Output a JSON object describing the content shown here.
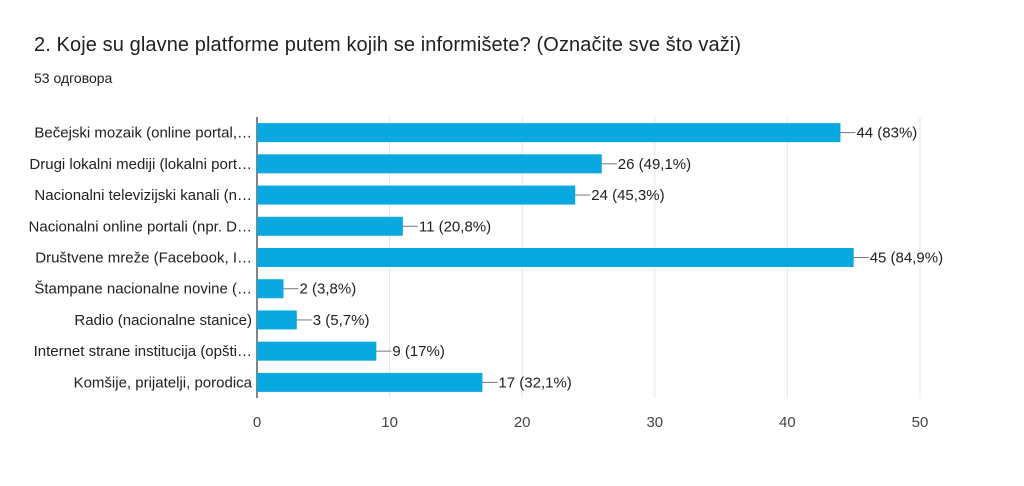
{
  "header": {
    "title": "2. Koje su glavne platforme putem kojih se informišete? (Označite sve što važi)",
    "response_count": "53 одговора"
  },
  "chart_data": {
    "type": "bar",
    "orientation": "horizontal",
    "title": "",
    "xlabel": "",
    "ylabel": "",
    "xlim": [
      0,
      50
    ],
    "x_ticks": [
      0,
      10,
      20,
      30,
      40,
      50
    ],
    "grid": true,
    "bar_color": "#0aa8e0",
    "categories": [
      "Bečejski mozaik (online portal,…",
      "Drugi lokalni mediji (lokalni port…",
      "Nacionalni televizijski kanali (n…",
      "Nacionalni online portali (npr. D…",
      "Društvene mreže (Facebook, I…",
      "Štampane nacionalne novine (…",
      "Radio (nacionalne stanice)",
      "Internet strane institucija (opšti…",
      "Komšije, prijatelji, porodica"
    ],
    "values": [
      44,
      26,
      24,
      11,
      45,
      2,
      3,
      9,
      17
    ],
    "value_labels": [
      "44 (83%)",
      "26 (49,1%)",
      "24 (45,3%)",
      "11 (20,8%)",
      "45 (84,9%)",
      "2 (3,8%)",
      "3 (5,7%)",
      "9 (17%)",
      "17 (32,1%)"
    ]
  }
}
